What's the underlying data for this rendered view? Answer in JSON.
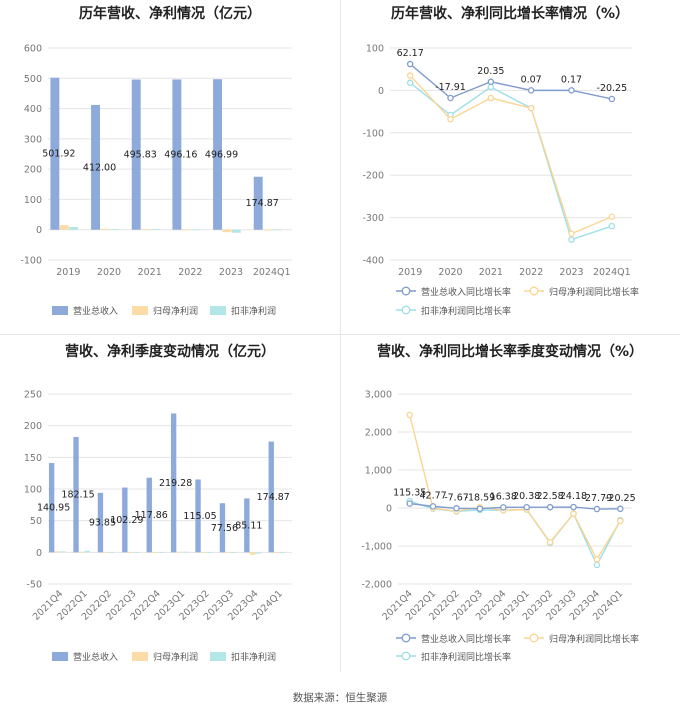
{
  "colors": {
    "revenue": "#8eaadb",
    "net_profit": "#fbdba6",
    "deducted_profit": "#b3e6e6",
    "revenue_line": "#7f9ccf",
    "net_line": "#fbd592",
    "deducted_line": "#9edfe8",
    "grid": "#e5e5e5",
    "axis_text": "#777777"
  },
  "source": "数据来源：恒生聚源",
  "chart_data": [
    {
      "type": "bar",
      "title": "历年营收、净利情况（亿元）",
      "categories": [
        "2019",
        "2020",
        "2021",
        "2022",
        "2023",
        "2024Q1"
      ],
      "ylim": [
        -100,
        600
      ],
      "yticks": [
        -100,
        0,
        100,
        200,
        300,
        400,
        500,
        600
      ],
      "grid": true,
      "legend_position": "bottom",
      "series": [
        {
          "name": "营业总收入",
          "values": [
            501.92,
            412.0,
            495.83,
            496.16,
            496.99,
            174.87
          ],
          "labels": [
            "501.92",
            "412.00",
            "495.83",
            "496.16",
            "496.99",
            "174.87"
          ]
        },
        {
          "name": "归母净利润",
          "values": [
            15,
            3,
            2,
            1,
            -8,
            0.5
          ]
        },
        {
          "name": "扣非净利润",
          "values": [
            9,
            2,
            2,
            1,
            -10,
            0.5
          ]
        }
      ]
    },
    {
      "type": "line",
      "title": "历年营收、净利同比增长率情况（%）",
      "categories": [
        "2019",
        "2020",
        "2021",
        "2022",
        "2023",
        "2024Q1"
      ],
      "ylim": [
        -400,
        100
      ],
      "yticks": [
        -400,
        -300,
        -200,
        -100,
        0,
        100
      ],
      "grid": true,
      "legend_position": "bottom",
      "series": [
        {
          "name": "营业总收入同比增长率",
          "values": [
            62.17,
            -17.91,
            20.35,
            0.07,
            0.17,
            -20.25
          ],
          "labels": [
            "62.17",
            "-17.91",
            "20.35",
            "0.07",
            "0.17",
            "-20.25"
          ]
        },
        {
          "name": "归母净利润同比增长率",
          "values": [
            35,
            -68,
            -18,
            -42,
            -338,
            -298
          ]
        },
        {
          "name": "扣非净利润同比增长率",
          "values": [
            18,
            -58,
            8,
            -42,
            -352,
            -320
          ]
        }
      ]
    },
    {
      "type": "bar",
      "title": "营收、净利季度变动情况（亿元）",
      "categories": [
        "2021Q4",
        "2022Q1",
        "2022Q2",
        "2022Q3",
        "2022Q4",
        "2023Q1",
        "2023Q2",
        "2023Q3",
        "2023Q4",
        "2024Q1"
      ],
      "ylim": [
        -50,
        250
      ],
      "yticks": [
        -50,
        0,
        50,
        100,
        150,
        200,
        250
      ],
      "grid": true,
      "legend_position": "bottom",
      "series": [
        {
          "name": "营业总收入",
          "values": [
            140.95,
            182.15,
            93.85,
            102.29,
            117.86,
            219.28,
            115.05,
            77.56,
            85.11,
            174.87
          ],
          "labels": [
            "140.95",
            "182.15",
            "93.85",
            "102.29",
            "117.86",
            "219.28",
            "115.05",
            "77.56",
            "85.11",
            "174.87"
          ]
        },
        {
          "name": "归母净利润",
          "values": [
            1.5,
            1,
            0.5,
            0.5,
            0.5,
            1,
            0.5,
            0.5,
            -4,
            0.3
          ]
        },
        {
          "name": "扣非净利润",
          "values": [
            1.5,
            2.5,
            0.5,
            0.5,
            0.5,
            1,
            0.5,
            0.5,
            -2,
            0.3
          ]
        }
      ]
    },
    {
      "type": "line",
      "title": "营收、净利同比增长率季度变动情况（%）",
      "categories": [
        "2021Q4",
        "2022Q1",
        "2022Q2",
        "2022Q3",
        "2022Q4",
        "2023Q1",
        "2023Q2",
        "2023Q3",
        "2023Q4",
        "2024Q1"
      ],
      "ylim": [
        -2000,
        3000
      ],
      "yticks": [
        -2000,
        -1000,
        0,
        1000,
        2000,
        3000
      ],
      "grid": true,
      "legend_position": "bottom",
      "series": [
        {
          "name": "营业总收入同比增长率",
          "values": [
            115.35,
            42.77,
            -7.67,
            -18.59,
            16.38,
            20.38,
            22.58,
            24.18,
            -27.79,
            -20.25
          ],
          "labels": [
            "115.35",
            "42.77",
            "-7.67",
            "-18.59",
            "16.38",
            "20.38",
            "22.58",
            "24.18",
            "-27.79",
            "-20.25"
          ]
        },
        {
          "name": "归母净利润同比增长率",
          "values": [
            2450,
            -10,
            -80,
            20,
            -60,
            -40,
            -900,
            -150,
            -1350,
            -340
          ]
        },
        {
          "name": "扣非净利润同比增长率",
          "values": [
            180,
            -20,
            -90,
            -50,
            -60,
            -40,
            -920,
            -150,
            -1500,
            -320
          ]
        }
      ]
    }
  ]
}
